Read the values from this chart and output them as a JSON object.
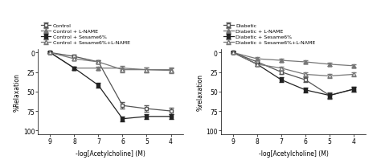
{
  "x": [
    9,
    8,
    7,
    6,
    5,
    4
  ],
  "left": {
    "ylabel": "%Relaxation",
    "xlabel": "-log[Acetylcholine] (M)",
    "series": [
      {
        "label": "Control",
        "marker": "s",
        "fillstyle": "none",
        "color": "#555555",
        "y": [
          0,
          5,
          12,
          68,
          72,
          75
        ],
        "yerr": [
          1,
          2,
          2,
          4,
          4,
          4
        ]
      },
      {
        "label": "Control + L-NAME",
        "marker": "^",
        "fillstyle": "full",
        "color": "#777777",
        "y": [
          0,
          20,
          20,
          20,
          22,
          22
        ],
        "yerr": [
          1,
          2,
          2,
          3,
          3,
          3
        ]
      },
      {
        "label": "Control + Sesame6%",
        "marker": "s",
        "fillstyle": "full",
        "color": "#222222",
        "y": [
          0,
          20,
          42,
          85,
          82,
          82
        ],
        "yerr": [
          1,
          2,
          3,
          3,
          3,
          3
        ]
      },
      {
        "label": "Control + Sesame6%+L-NAME",
        "marker": "^",
        "fillstyle": "none",
        "color": "#777777",
        "y": [
          0,
          8,
          12,
          22,
          22,
          23
        ],
        "yerr": [
          1,
          2,
          2,
          3,
          3,
          3
        ]
      }
    ],
    "ylim": [
      105,
      -5
    ],
    "yticks": [
      0,
      25,
      50,
      75,
      100
    ]
  },
  "right": {
    "ylabel": "%relaxation",
    "xlabel": "-log[Acetylcholine] (M)",
    "series": [
      {
        "label": "Diabetic",
        "marker": "s",
        "fillstyle": "none",
        "color": "#555555",
        "y": [
          0,
          12,
          25,
          35,
          55,
          47
        ],
        "yerr": [
          1,
          2,
          3,
          3,
          4,
          3
        ]
      },
      {
        "label": "Diabetic + L-NAME",
        "marker": "^",
        "fillstyle": "full",
        "color": "#777777",
        "y": [
          0,
          8,
          10,
          12,
          15,
          17
        ],
        "yerr": [
          1,
          2,
          2,
          2,
          2,
          2
        ]
      },
      {
        "label": "Diabetic + Sesame6%",
        "marker": "s",
        "fillstyle": "full",
        "color": "#222222",
        "y": [
          0,
          15,
          35,
          48,
          55,
          47
        ],
        "yerr": [
          1,
          2,
          3,
          3,
          3,
          3
        ]
      },
      {
        "label": "Diabetic + Sesame6%+L-NAME",
        "marker": "^",
        "fillstyle": "none",
        "color": "#777777",
        "y": [
          0,
          15,
          20,
          28,
          30,
          28
        ],
        "yerr": [
          1,
          2,
          2,
          3,
          3,
          3
        ]
      }
    ],
    "ylim": [
      105,
      -5
    ],
    "yticks": [
      0,
      25,
      50,
      75,
      100
    ]
  }
}
